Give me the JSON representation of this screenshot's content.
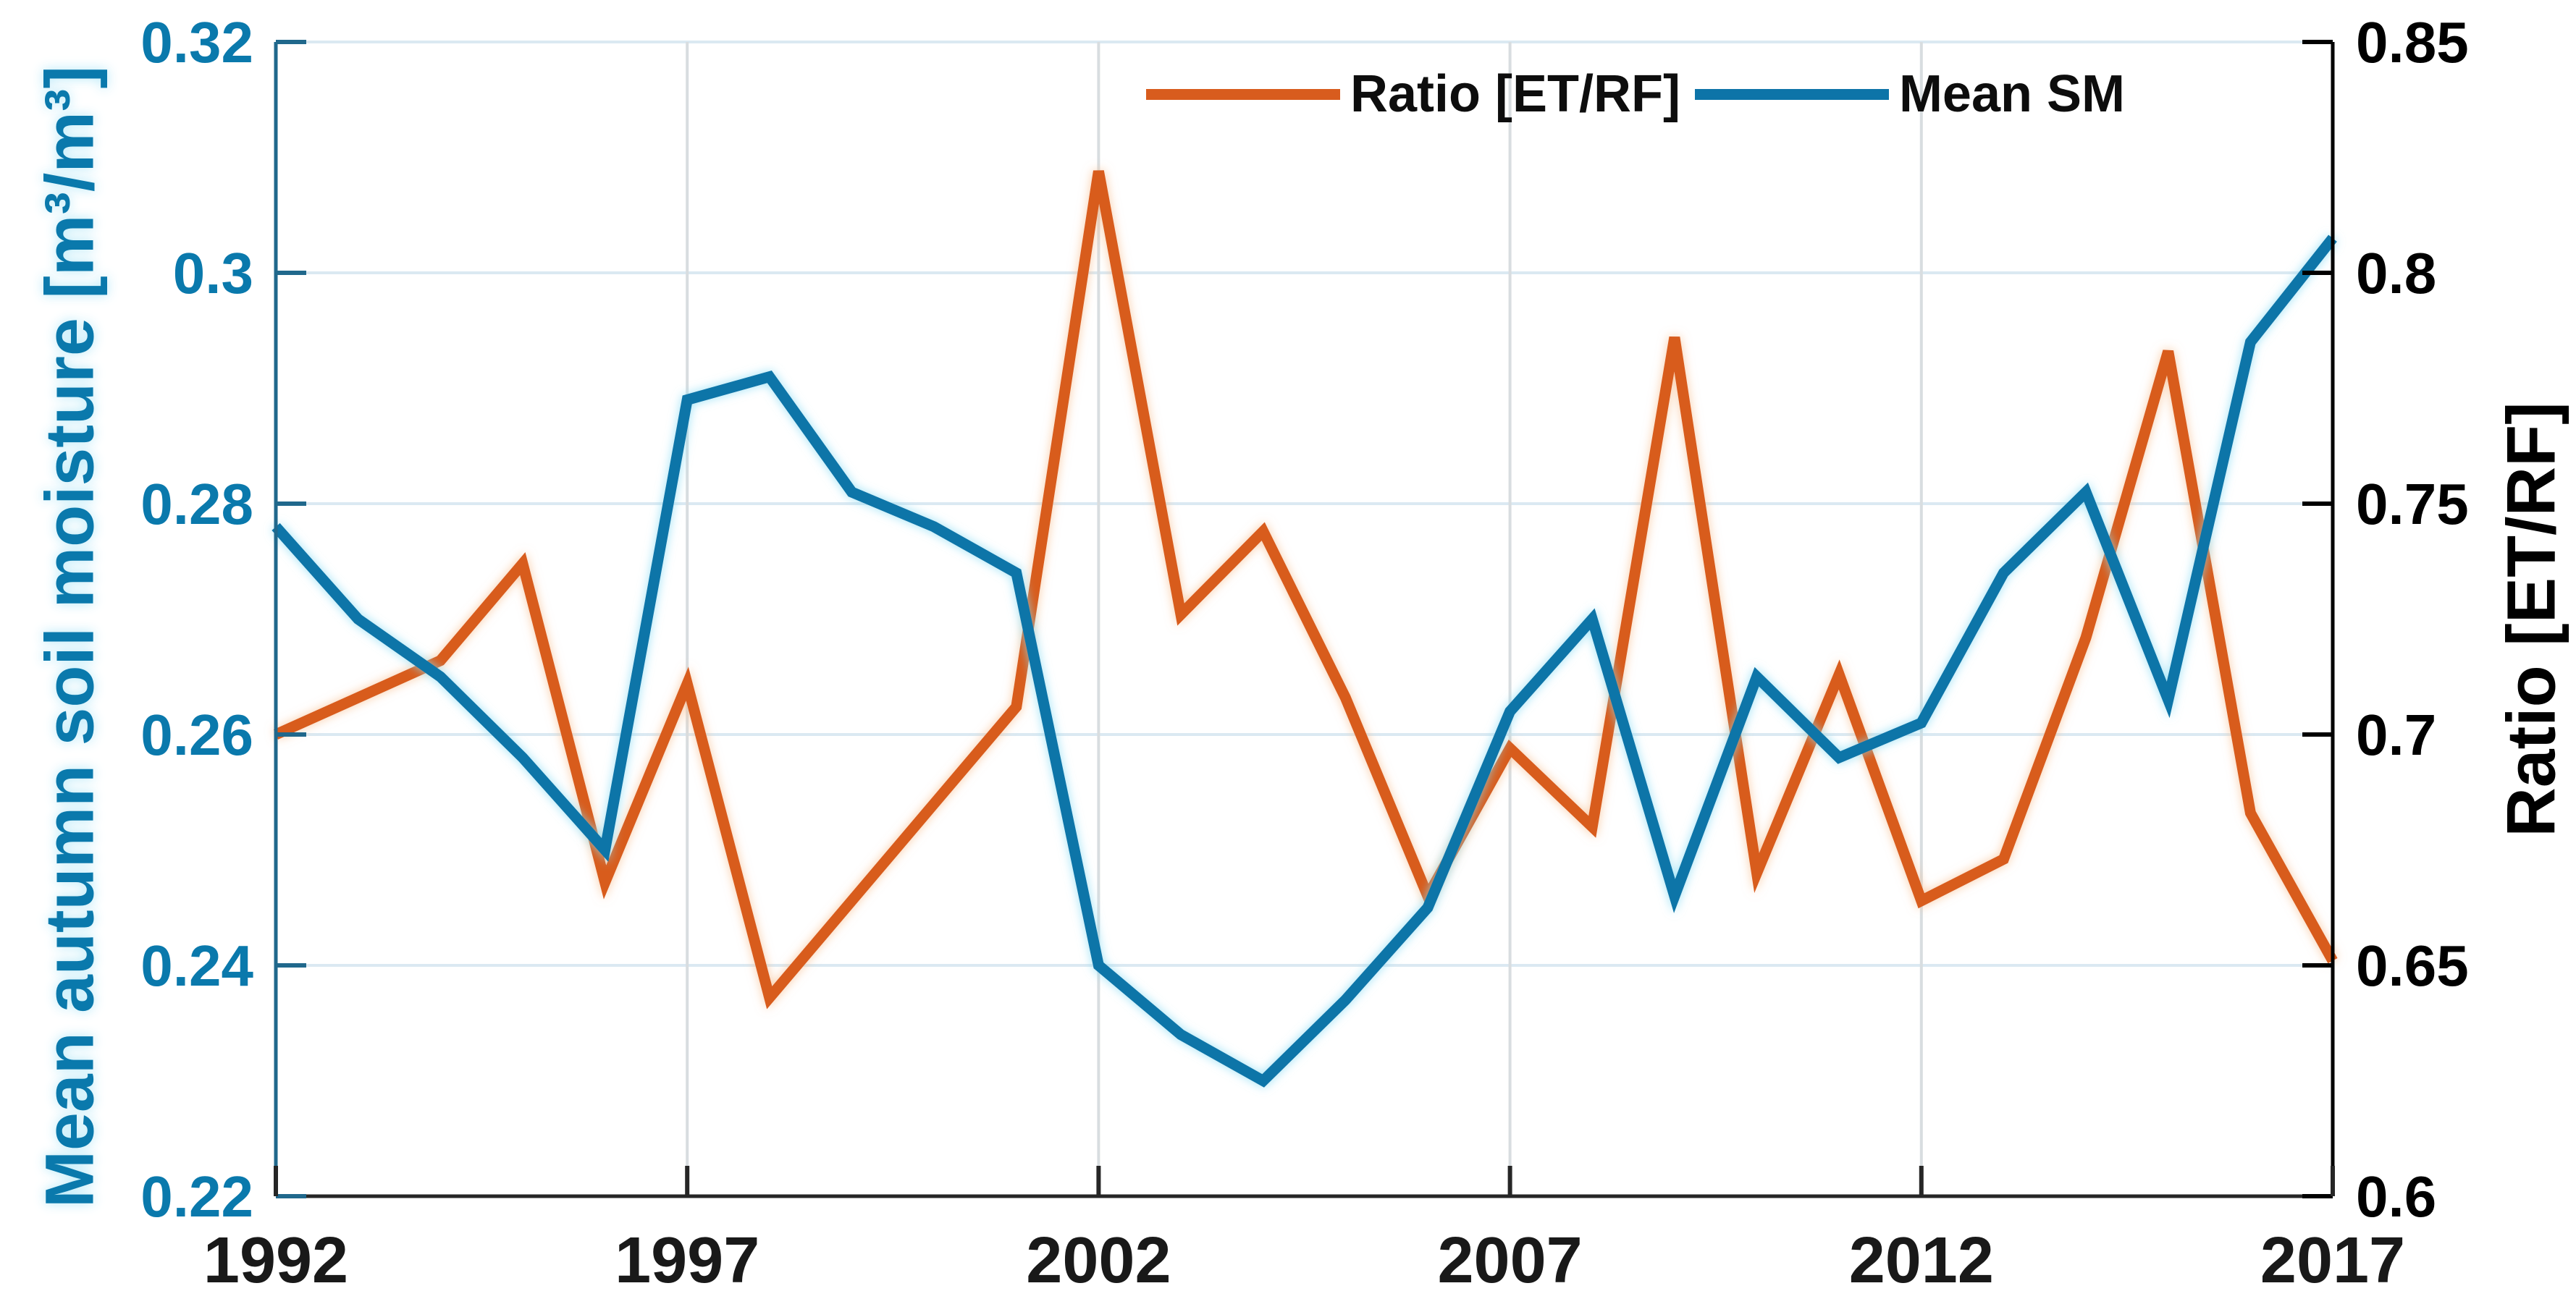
{
  "figure": {
    "background": "#ffffff"
  },
  "legend": {
    "items": [
      {
        "label": "Ratio [ET/RF]",
        "color": "#d85c1e"
      },
      {
        "label": "Mean SM",
        "color": "#0d74a8"
      }
    ]
  },
  "chart_data": {
    "type": "line",
    "x": [
      1992,
      1993,
      1994,
      1995,
      1996,
      1997,
      1998,
      1999,
      2000,
      2001,
      2002,
      2003,
      2004,
      2005,
      2006,
      2007,
      2008,
      2009,
      2010,
      2011,
      2012,
      2013,
      2014,
      2015,
      2016,
      2017
    ],
    "series": [
      {
        "name": "Ratio [ET/RF]",
        "axis": "right",
        "color": "#d85c1e",
        "glow": "#f8c092",
        "values": [
          0.7,
          0.708,
          0.716,
          0.737,
          0.668,
          0.711,
          0.643,
          0.664,
          0.685,
          0.706,
          0.822,
          0.726,
          0.744,
          0.708,
          0.665,
          0.697,
          0.68,
          0.786,
          0.67,
          0.713,
          0.664,
          0.673,
          0.721,
          0.783,
          0.683,
          0.651
        ]
      },
      {
        "name": "Mean SM",
        "axis": "left",
        "color": "#0d74a8",
        "glow": "#86dcf4",
        "values": [
          0.278,
          0.27,
          0.265,
          0.258,
          0.25,
          0.289,
          0.291,
          0.281,
          0.278,
          0.274,
          0.24,
          0.234,
          0.23,
          0.237,
          0.245,
          0.262,
          0.27,
          0.246,
          0.265,
          0.258,
          0.261,
          0.274,
          0.281,
          0.263,
          0.294,
          0.303
        ]
      }
    ],
    "x_axis": {
      "range": [
        1992,
        2017
      ],
      "ticks": [
        1992,
        1997,
        2002,
        2007,
        2012,
        2017
      ],
      "tick_labels": [
        "1992",
        "1997",
        "2002",
        "2007",
        "2012",
        "2017"
      ],
      "color": "#262626",
      "label_color": "#191919"
    },
    "left_y_axis": {
      "label": "Mean autumn soil moisture [m³/m³]",
      "range": [
        0.22,
        0.32
      ],
      "ticks": [
        0.22,
        0.24,
        0.26,
        0.28,
        0.3,
        0.32
      ],
      "tick_labels": [
        "0.22",
        "0.24",
        "0.26",
        "0.28",
        "0.3",
        "0.32"
      ],
      "spine_color": "#20688c",
      "label_color": "#0a79ac"
    },
    "right_y_axis": {
      "label": "Ratio [ET/RF]",
      "range": [
        0.6,
        0.85
      ],
      "ticks": [
        0.6,
        0.65,
        0.7,
        0.75,
        0.8,
        0.85
      ],
      "tick_labels": [
        "0.6",
        "0.65",
        "0.7",
        "0.75",
        "0.8",
        "0.85"
      ],
      "spine_color": "#000000",
      "label_color": "#000000"
    },
    "grid": true,
    "grid_color_horizontal": "#dbe9f2",
    "grid_color_vertical": "#d8dde0",
    "legend_position": "top-center"
  }
}
